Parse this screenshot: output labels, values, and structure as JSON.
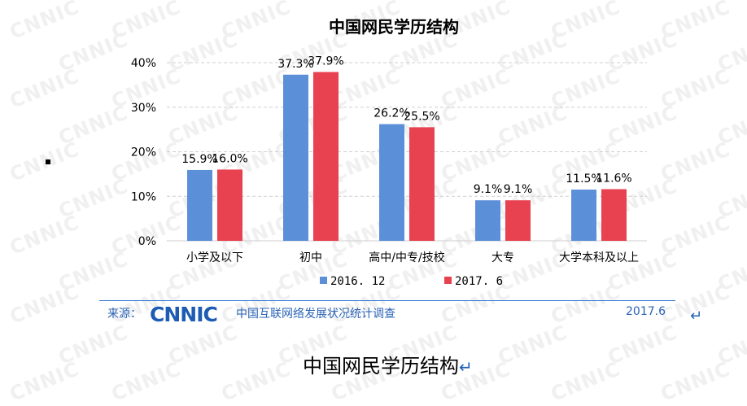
{
  "chart_data": {
    "type": "bar",
    "title": "中国网民学历结构",
    "categories": [
      "小学及以下",
      "初中",
      "高中/中专/技校",
      "大专",
      "大学本科及以上"
    ],
    "series": [
      {
        "name": "2016. 12",
        "color": "#5b8fd8",
        "values": [
          15.9,
          37.3,
          26.2,
          9.1,
          11.5
        ]
      },
      {
        "name": "2017. 6",
        "color": "#e8414f",
        "values": [
          16.0,
          37.9,
          25.5,
          9.1,
          11.6
        ]
      }
    ],
    "value_labels": [
      [
        "15.9%",
        "37.3%",
        "26.2%",
        "9.1%",
        "11.5%"
      ],
      [
        "16.0%",
        "37.9%",
        "25.5%",
        "9.1%",
        "11.6%"
      ]
    ],
    "yticks": [
      "0%",
      "10%",
      "20%",
      "30%",
      "40%"
    ],
    "ylim": [
      0,
      40
    ],
    "grid": true,
    "legend_position": "bottom"
  },
  "watermark": "CNNIC",
  "source": {
    "label": "来源：",
    "logo": "CNNIC",
    "text": "中国互联网络发展状况统计调查",
    "date": "2017.6"
  },
  "caption": "中国网民学历结构",
  "return_symbol": "↵"
}
